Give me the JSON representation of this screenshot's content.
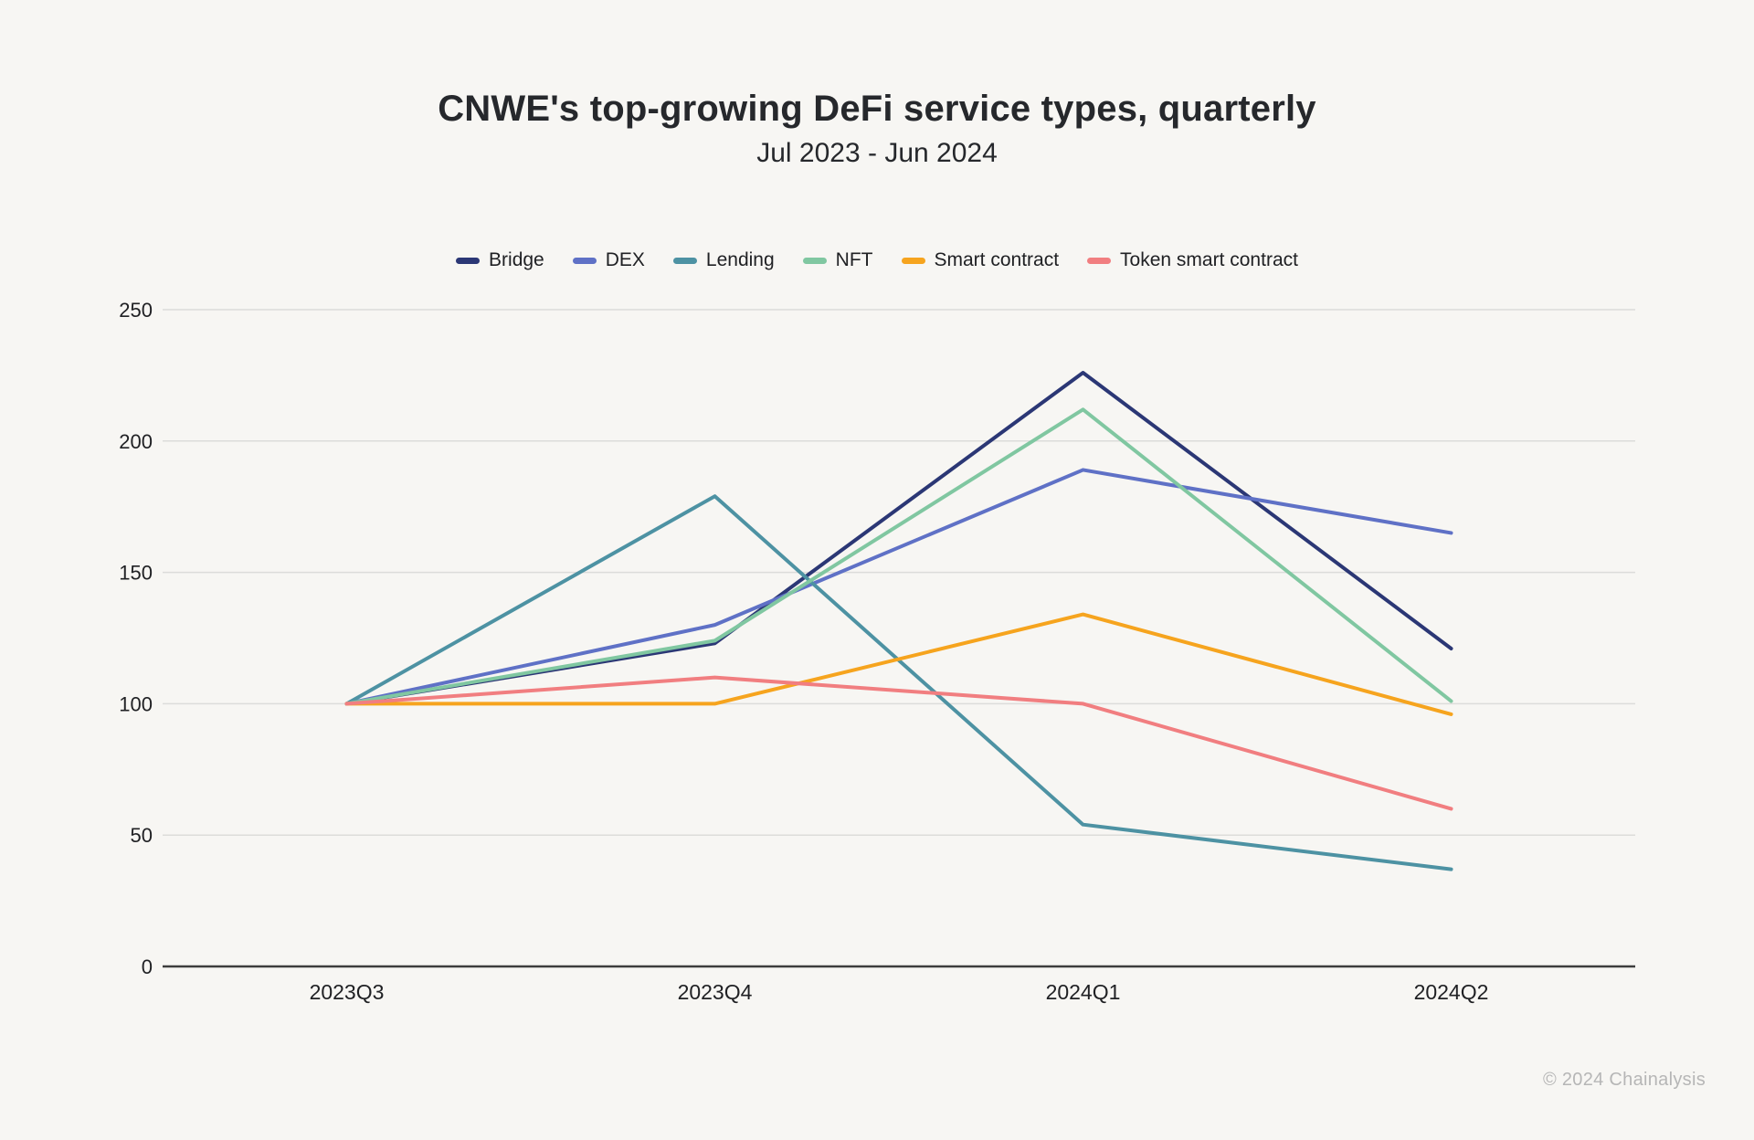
{
  "page": {
    "title": "CNWE's top-growing DeFi service types, quarterly",
    "subtitle": "Jul 2023 - Jun 2024",
    "attribution": "© 2024 Chainalysis",
    "background_color": "#f7f6f3",
    "text_color": "#26282c",
    "gridline_color": "#dcdcda",
    "axis_line_color": "#3d3d3d",
    "tick_label_color": "#202124"
  },
  "chart_data": {
    "type": "line",
    "title": "CNWE's top-growing DeFi service types, quarterly",
    "subtitle": "Jul 2023 - Jun 2024",
    "categories": [
      "2023Q3",
      "2023Q4",
      "2024Q1",
      "2024Q2"
    ],
    "series": [
      {
        "name": "Bridge",
        "color": "#2b3775",
        "values": [
          100,
          123,
          226,
          121
        ]
      },
      {
        "name": "DEX",
        "color": "#5f71c6",
        "values": [
          100,
          130,
          189,
          165
        ]
      },
      {
        "name": "Lending",
        "color": "#4d92a3",
        "values": [
          100,
          179,
          54,
          37
        ]
      },
      {
        "name": "NFT",
        "color": "#80c7a1",
        "values": [
          100,
          124,
          212,
          101
        ]
      },
      {
        "name": "Smart contract",
        "color": "#f6a41e",
        "values": [
          100,
          100,
          134,
          96
        ]
      },
      {
        "name": "Token smart contract",
        "color": "#f17e80",
        "values": [
          100,
          110,
          100,
          60
        ]
      }
    ],
    "ylim": [
      0,
      250
    ],
    "yticks": [
      0,
      50,
      100,
      150,
      200,
      250
    ],
    "grid": true,
    "legend_position": "top",
    "line_width": 4
  }
}
